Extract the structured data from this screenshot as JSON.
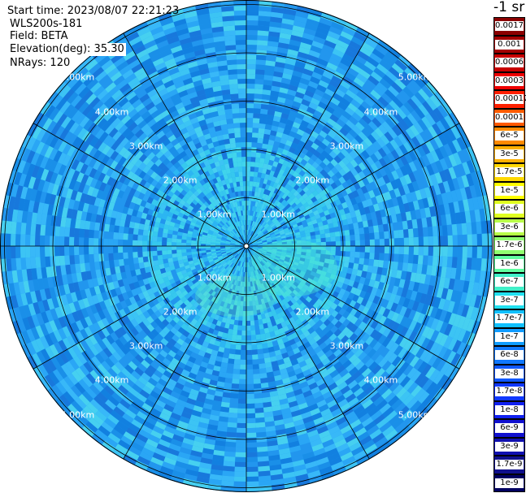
{
  "info": {
    "start_time": "Start time: 2023/08/07 22:21:23",
    "instrument": "WLS200s-181",
    "field": "Field: BETA",
    "elevation": "Elevation(deg): 35.30",
    "nrays": "NRays: 120"
  },
  "units": "-1 sr",
  "range_labels": [
    "1.00km",
    "2.00km",
    "3.00km",
    "4.00km",
    "5.00km"
  ],
  "color_scale": {
    "labels": [
      "0.0017",
      "0.001",
      "0.0006",
      "0.0003",
      "0.00017",
      "0.0001",
      "6e-5",
      "3e-5",
      "1.7e-5",
      "1e-5",
      "6e-6",
      "3e-6",
      "1.7e-6",
      "1e-6",
      "6e-7",
      "3e-7",
      "1.7e-7",
      "1e-7",
      "6e-8",
      "3e-8",
      "1.7e-8",
      "1e-8",
      "6e-9",
      "3e-9",
      "1.7e-9",
      "1e-9"
    ],
    "colors": [
      "#8b0000",
      "#a30000",
      "#c80000",
      "#ee0000",
      "#ff2000",
      "#ff5a00",
      "#ff8a00",
      "#ffb000",
      "#ffd800",
      "#ffff00",
      "#e0ff20",
      "#b8ff48",
      "#90ff70",
      "#60ffa0",
      "#40f0c8",
      "#20e0f0",
      "#10c0ff",
      "#109cff",
      "#1078ff",
      "#1058ff",
      "#1038ff",
      "#1020f0",
      "#1010d0",
      "#1010b0",
      "#10108c",
      "#000060"
    ]
  }
}
